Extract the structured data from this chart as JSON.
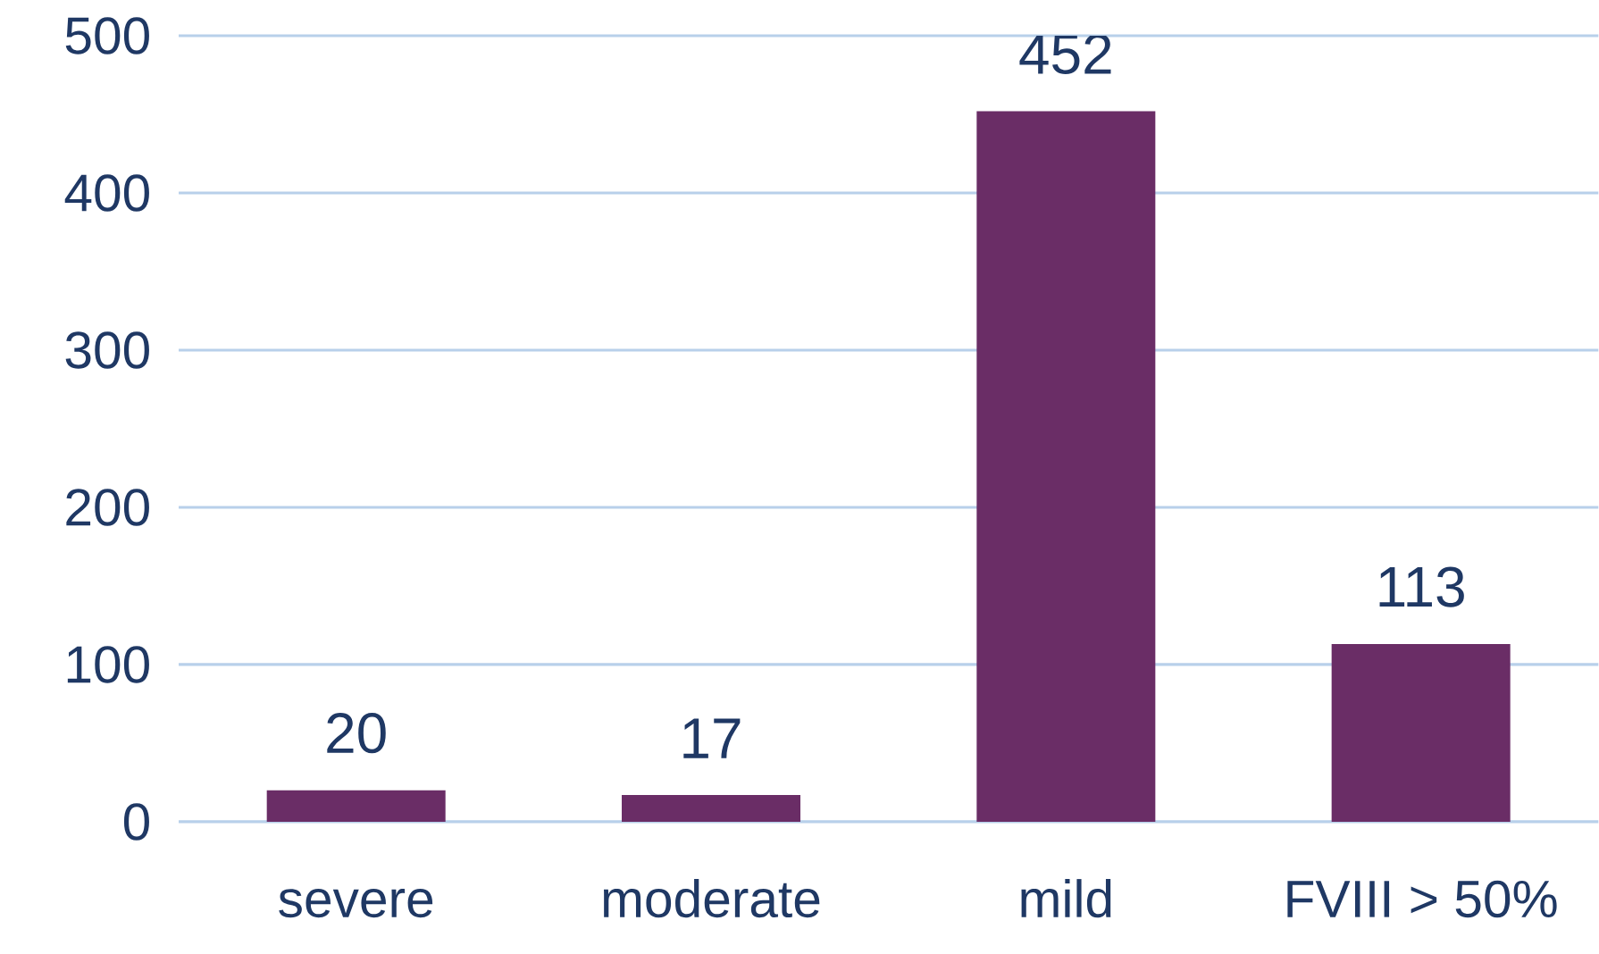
{
  "chart_data": {
    "type": "bar",
    "categories": [
      "severe",
      "moderate",
      "mild",
      "FVIII > 50%"
    ],
    "values": [
      20,
      17,
      452,
      113
    ],
    "color": "#6a2d66",
    "ylim": [
      0,
      500
    ],
    "yticks": [
      0,
      100,
      200,
      300,
      400,
      500
    ],
    "grid": "y",
    "data_labels": true
  }
}
